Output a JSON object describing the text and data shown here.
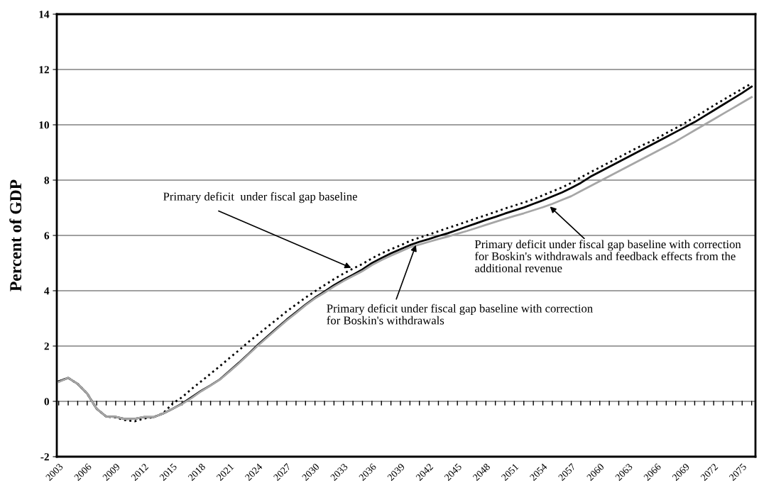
{
  "chart_data": {
    "type": "line",
    "ylabel": "Percent of GDP",
    "x": [
      2003,
      2004,
      2005,
      2006,
      2007,
      2008,
      2009,
      2010,
      2011,
      2012,
      2013,
      2014,
      2015,
      2016,
      2017,
      2018,
      2019,
      2020,
      2021,
      2022,
      2023,
      2024,
      2025,
      2026,
      2027,
      2028,
      2029,
      2030,
      2031,
      2032,
      2033,
      2034,
      2035,
      2036,
      2037,
      2038,
      2039,
      2040,
      2041,
      2042,
      2043,
      2044,
      2045,
      2046,
      2047,
      2048,
      2049,
      2050,
      2051,
      2052,
      2053,
      2054,
      2055,
      2056,
      2057,
      2058,
      2059,
      2060,
      2061,
      2062,
      2063,
      2064,
      2065,
      2066,
      2067,
      2068,
      2069,
      2070,
      2071,
      2072,
      2073,
      2074,
      2075,
      2076
    ],
    "series": [
      {
        "color": "#000000",
        "line_style": "dotted",
        "values": [
          0.72,
          0.85,
          0.63,
          0.28,
          -0.27,
          -0.55,
          -0.58,
          -0.68,
          -0.72,
          -0.62,
          -0.57,
          -0.43,
          -0.08,
          0.15,
          0.45,
          0.72,
          1.0,
          1.28,
          1.57,
          1.85,
          2.15,
          2.42,
          2.7,
          2.97,
          3.25,
          3.5,
          3.75,
          3.98,
          4.2,
          4.42,
          4.62,
          4.8,
          4.97,
          5.17,
          5.35,
          5.5,
          5.64,
          5.8,
          5.92,
          6.03,
          6.15,
          6.27,
          6.38,
          6.5,
          6.62,
          6.73,
          6.85,
          6.97,
          7.08,
          7.19,
          7.31,
          7.45,
          7.59,
          7.73,
          7.9,
          8.1,
          8.28,
          8.46,
          8.64,
          8.82,
          9.0,
          9.18,
          9.34,
          9.5,
          9.7,
          9.88,
          10.07,
          10.28,
          10.48,
          10.7,
          10.9,
          11.1,
          11.3,
          11.5
        ]
      },
      {
        "color": "#000000",
        "line_style": "solid",
        "values": [
          0.72,
          0.85,
          0.63,
          0.28,
          -0.27,
          -0.55,
          -0.56,
          -0.64,
          -0.63,
          -0.57,
          -0.57,
          -0.44,
          -0.27,
          -0.08,
          0.15,
          0.38,
          0.58,
          0.8,
          1.1,
          1.4,
          1.72,
          2.05,
          2.35,
          2.65,
          2.95,
          3.22,
          3.5,
          3.75,
          3.97,
          4.2,
          4.4,
          4.58,
          4.77,
          5.0,
          5.18,
          5.35,
          5.5,
          5.65,
          5.77,
          5.87,
          5.98,
          6.08,
          6.2,
          6.32,
          6.44,
          6.56,
          6.67,
          6.79,
          6.9,
          7.01,
          7.14,
          7.27,
          7.41,
          7.55,
          7.72,
          7.9,
          8.12,
          8.3,
          8.48,
          8.66,
          8.84,
          9.02,
          9.2,
          9.38,
          9.56,
          9.74,
          9.92,
          10.1,
          10.31,
          10.52,
          10.73,
          10.94,
          11.15,
          11.38
        ]
      },
      {
        "color": "#a6a6a6",
        "line_style": "solid",
        "values": [
          0.7,
          0.85,
          0.63,
          0.28,
          -0.27,
          -0.55,
          -0.56,
          -0.64,
          -0.63,
          -0.56,
          -0.57,
          -0.44,
          -0.27,
          -0.1,
          0.12,
          0.36,
          0.57,
          0.79,
          1.08,
          1.38,
          1.7,
          2.02,
          2.32,
          2.62,
          2.92,
          3.19,
          3.47,
          3.72,
          3.93,
          4.15,
          4.35,
          4.53,
          4.71,
          4.93,
          5.11,
          5.27,
          5.42,
          5.57,
          5.67,
          5.77,
          5.87,
          5.96,
          6.06,
          6.16,
          6.27,
          6.38,
          6.49,
          6.6,
          6.7,
          6.8,
          6.91,
          7.02,
          7.14,
          7.28,
          7.42,
          7.6,
          7.78,
          7.96,
          8.14,
          8.32,
          8.5,
          8.68,
          8.86,
          9.04,
          9.22,
          9.4,
          9.6,
          9.8,
          10.0,
          10.2,
          10.4,
          10.6,
          10.8,
          11.0
        ]
      }
    ],
    "xlim": [
      2002.8,
      2076.4
    ],
    "xticks": [
      2003,
      {
        "value": 2004,
        "label": null
      },
      {
        "value": 2005,
        "label": null
      },
      2006,
      {
        "value": 2007,
        "label": null
      },
      {
        "value": 2008,
        "label": null
      },
      2009,
      {
        "value": 2010,
        "label": null
      },
      {
        "value": 2011,
        "label": null
      },
      2012,
      {
        "value": 2013,
        "label": null
      },
      {
        "value": 2014,
        "label": null
      },
      2015,
      {
        "value": 2016,
        "label": null
      },
      {
        "value": 2017,
        "label": null
      },
      2018,
      {
        "value": 2019,
        "label": null
      },
      {
        "value": 2020,
        "label": null
      },
      2021,
      {
        "value": 2022,
        "label": null
      },
      {
        "value": 2023,
        "label": null
      },
      2024,
      {
        "value": 2025,
        "label": null
      },
      {
        "value": 2026,
        "label": null
      },
      2027,
      {
        "value": 2028,
        "label": null
      },
      {
        "value": 2029,
        "label": null
      },
      2030,
      {
        "value": 2031,
        "label": null
      },
      {
        "value": 2032,
        "label": null
      },
      2033,
      {
        "value": 2034,
        "label": null
      },
      {
        "value": 2035,
        "label": null
      },
      2036,
      {
        "value": 2037,
        "label": null
      },
      {
        "value": 2038,
        "label": null
      },
      2039,
      {
        "value": 2040,
        "label": null
      },
      {
        "value": 2041,
        "label": null
      },
      2042,
      {
        "value": 2043,
        "label": null
      },
      {
        "value": 2044,
        "label": null
      },
      2045,
      {
        "value": 2046,
        "label": null
      },
      {
        "value": 2047,
        "label": null
      },
      2048,
      {
        "value": 2049,
        "label": null
      },
      {
        "value": 2050,
        "label": null
      },
      2051,
      {
        "value": 2052,
        "label": null
      },
      {
        "value": 2053,
        "label": null
      },
      2054,
      {
        "value": 2055,
        "label": null
      },
      {
        "value": 2056,
        "label": null
      },
      2057,
      {
        "value": 2058,
        "label": null
      },
      {
        "value": 2059,
        "label": null
      },
      2060,
      {
        "value": 2061,
        "label": null
      },
      {
        "value": 2062,
        "label": null
      },
      2063,
      {
        "value": 2064,
        "label": null
      },
      {
        "value": 2065,
        "label": null
      },
      2066,
      {
        "value": 2067,
        "label": null
      },
      {
        "value": 2068,
        "label": null
      },
      2069,
      {
        "value": 2070,
        "label": null
      },
      {
        "value": 2071,
        "label": null
      },
      2072,
      {
        "value": 2073,
        "label": null
      },
      {
        "value": 2074,
        "label": null
      },
      2075,
      {
        "value": 2076,
        "label": null
      }
    ],
    "ylim": [
      -2,
      14
    ],
    "yticks": [
      -2,
      0,
      2,
      4,
      6,
      8,
      10,
      12,
      14
    ],
    "grid": "y",
    "marker": "none",
    "annotations": [
      {
        "text": "Primary deficit  under fiscal gap baseline",
        "x": 2034,
        "y": 4.8
      },
      {
        "text": "Primary deficit under fiscal gap baseline with correction\nfor Boskin's withdrawals",
        "x": 2040.7,
        "y": 5.72
      },
      {
        "text": "Primary deficit under fiscal gap baseline with correction\nfor Boskin's withdrawals and feedback effects from the\nadditional revenue",
        "x": 2054.6,
        "y": 7.09
      }
    ]
  }
}
